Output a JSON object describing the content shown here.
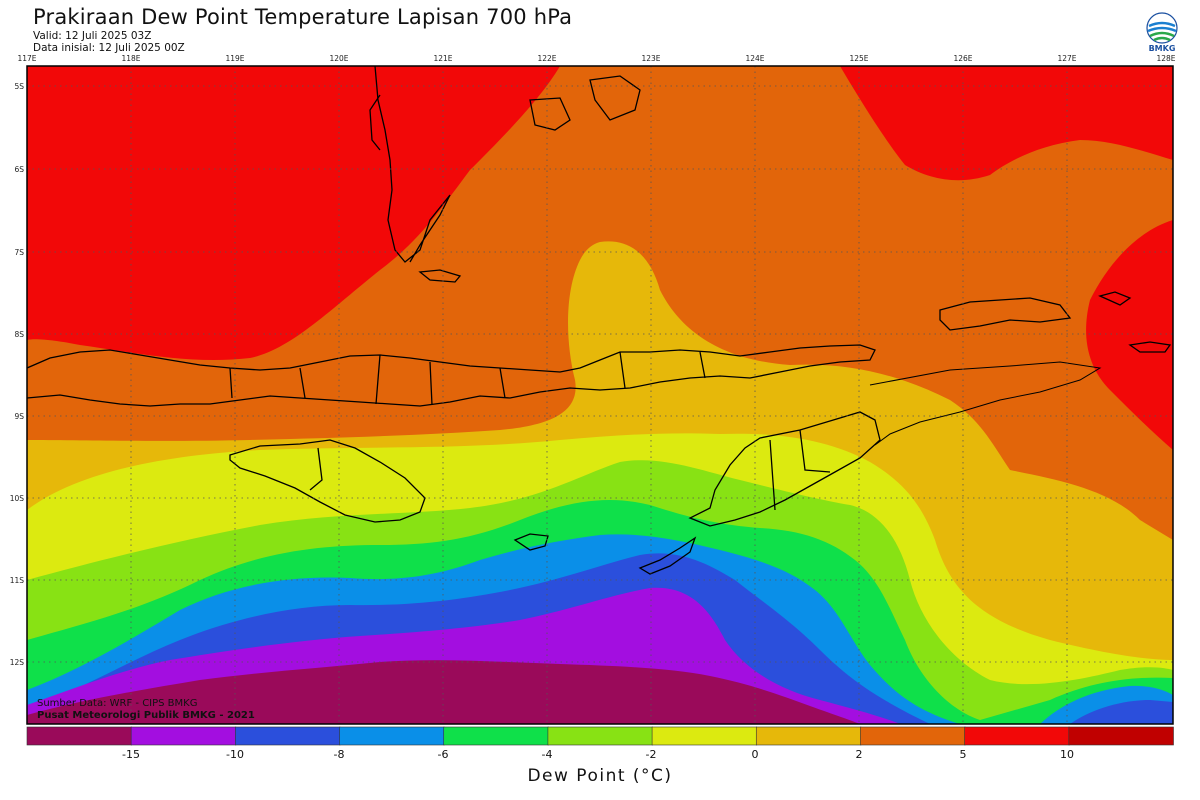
{
  "header": {
    "title": "Prakiraan Dew Point Temperature Lapisan 700 hPa",
    "valid": "Valid: 12 Juli 2025 03Z",
    "data_inisial": "Data inisial: 12 Juli 2025 00Z"
  },
  "logo": {
    "text": "BMKG",
    "icon": "bmkg-logo-icon"
  },
  "map": {
    "lon_labels": [
      "117E",
      "118E",
      "119E",
      "120E",
      "121E",
      "122E",
      "123E",
      "124E",
      "125E",
      "126E",
      "127E",
      "128E"
    ],
    "lat_labels": [
      "5S",
      "6S",
      "7S",
      "8S",
      "9S",
      "10S",
      "11S",
      "12S"
    ],
    "grid": "dotted"
  },
  "source": {
    "line1": "Sumber Data: WRF - CIPS BMKG",
    "line2": "Pusat Meteorologi Publik BMKG - 2021"
  },
  "colorbar": {
    "title": "Dew Point (°C)",
    "ticks": [
      "-15",
      "-10",
      "-8",
      "-6",
      "-4",
      "-2",
      "0",
      "2",
      "5",
      "10"
    ],
    "colors": [
      "#9a0a5a",
      "#a30ee0",
      "#2b4fdc",
      "#0a8fe8",
      "#0fe04a",
      "#88e214",
      "#dcea10",
      "#e6b80a",
      "#e2650a",
      "#f20808",
      "#c00000"
    ]
  }
}
